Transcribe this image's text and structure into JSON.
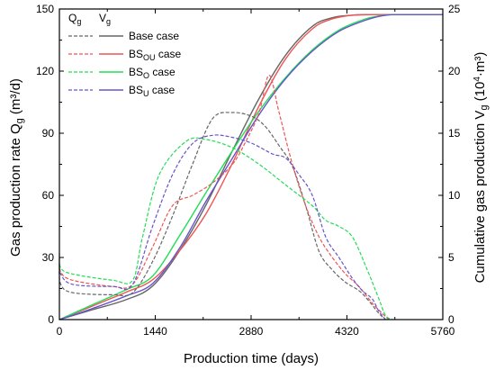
{
  "chart_data": {
    "type": "line",
    "xlabel": "Production time (days)",
    "ylabel_left": {
      "text": "Gas production rate Q",
      "sub": "g",
      "unit": " (m³/d)"
    },
    "ylabel_right": {
      "text": "Cumulative gas production V",
      "sub": "g",
      "unit_pre": " (10",
      "unit_sup": "4",
      "unit_post": "·m³)"
    },
    "xlim": [
      0,
      5760
    ],
    "ylim_left": [
      0,
      150
    ],
    "ylim_right": [
      0,
      25
    ],
    "x_ticks": [
      0,
      1440,
      2880,
      4320,
      5760
    ],
    "y_ticks_left": [
      0,
      30,
      60,
      90,
      120,
      150
    ],
    "y_ticks_right": [
      0,
      5,
      10,
      15,
      20,
      25
    ],
    "legend_header": {
      "q": {
        "main": "Q",
        "sub": "g"
      },
      "v": {
        "main": "V",
        "sub": "g"
      }
    },
    "legend": [
      {
        "main": "Base case",
        "sub": "",
        "suffix": ""
      },
      {
        "main": "BS",
        "sub": "OU",
        "suffix": " case"
      },
      {
        "main": "BS",
        "sub": "O",
        "suffix": "  case"
      },
      {
        "main": "BS",
        "sub": "U",
        "suffix": "  case"
      }
    ],
    "colors": [
      "#666666",
      "#ee5555",
      "#22dd55",
      "#6655cc"
    ],
    "series_rate": [
      {
        "legend_index": 0,
        "x": [
          0,
          20,
          200,
          800,
          1100,
          1400,
          1700,
          2000,
          2300,
          2600,
          2900,
          3100,
          3300,
          3500,
          3700,
          3900,
          4100,
          4300,
          4500,
          4650,
          4800,
          4900
        ],
        "y": [
          26,
          17,
          13,
          12,
          13,
          28,
          50,
          75,
          97,
          100,
          98,
          93,
          84,
          74,
          55,
          33,
          24,
          18,
          14,
          9,
          3,
          0
        ]
      },
      {
        "legend_index": 1,
        "x": [
          0,
          20,
          200,
          800,
          1100,
          1400,
          1700,
          2000,
          2300,
          2600,
          2800,
          3000,
          3150,
          3300,
          3500,
          3700,
          3900,
          4100,
          4300,
          4500,
          4700,
          4850,
          4950
        ],
        "y": [
          30,
          23,
          19,
          16,
          17,
          35,
          55,
          60,
          66,
          75,
          86,
          100,
          118,
          100,
          75,
          55,
          40,
          30,
          22,
          16,
          8,
          3,
          0
        ]
      },
      {
        "legend_index": 2,
        "x": [
          0,
          20,
          200,
          800,
          1100,
          1250,
          1500,
          1900,
          2200,
          2600,
          3000,
          3400,
          3800,
          4000,
          4200,
          4400,
          4600,
          4800,
          4900,
          5000
        ],
        "y": [
          32,
          25,
          22,
          19,
          19,
          40,
          70,
          86,
          87,
          83,
          75,
          65,
          55,
          48,
          45,
          40,
          26,
          10,
          2,
          0
        ]
      },
      {
        "legend_index": 3,
        "x": [
          0,
          20,
          200,
          800,
          1100,
          1400,
          1700,
          2000,
          2300,
          2600,
          2900,
          3200,
          3400,
          3600,
          3800,
          4000,
          4200,
          4400,
          4550,
          4700,
          4800,
          4900
        ],
        "y": [
          28,
          22,
          17,
          16,
          17,
          45,
          70,
          85,
          89,
          88,
          85,
          80,
          78,
          70,
          60,
          40,
          30,
          20,
          14,
          10,
          4,
          0
        ]
      }
    ],
    "series_cum": [
      {
        "legend_index": 0,
        "x": [
          0,
          500,
          1000,
          1400,
          1800,
          2200,
          2600,
          3000,
          3400,
          3800,
          4100,
          4400,
          4700,
          5000,
          5760
        ],
        "y": [
          0,
          0.8,
          1.6,
          2.7,
          5.5,
          9.2,
          13.6,
          17.8,
          21.3,
          23.6,
          24.3,
          24.5,
          24.55,
          24.55,
          24.55
        ]
      },
      {
        "legend_index": 1,
        "x": [
          0,
          500,
          1000,
          1400,
          1800,
          2200,
          2600,
          3000,
          3400,
          3800,
          4100,
          4400,
          4700,
          5000,
          5760
        ],
        "y": [
          0,
          1.1,
          2.2,
          3.2,
          5.5,
          8.5,
          12.6,
          17.2,
          21.0,
          23.4,
          24.2,
          24.5,
          24.55,
          24.55,
          24.55
        ]
      },
      {
        "legend_index": 2,
        "x": [
          0,
          500,
          1000,
          1400,
          1800,
          2200,
          2600,
          3000,
          3400,
          3800,
          4200,
          4600,
          4900,
          5200,
          5760
        ],
        "y": [
          0,
          1.2,
          2.4,
          3.5,
          6.7,
          10.2,
          13.6,
          16.8,
          19.5,
          21.7,
          23.3,
          24.2,
          24.5,
          24.55,
          24.55
        ]
      },
      {
        "legend_index": 3,
        "x": [
          0,
          500,
          1000,
          1400,
          1800,
          2200,
          2600,
          3000,
          3400,
          3800,
          4200,
          4600,
          4900,
          5200,
          5760
        ],
        "y": [
          0,
          0.9,
          1.9,
          2.9,
          5.7,
          9.5,
          13.0,
          16.5,
          19.4,
          21.6,
          23.2,
          24.1,
          24.5,
          24.55,
          24.55
        ]
      }
    ]
  }
}
